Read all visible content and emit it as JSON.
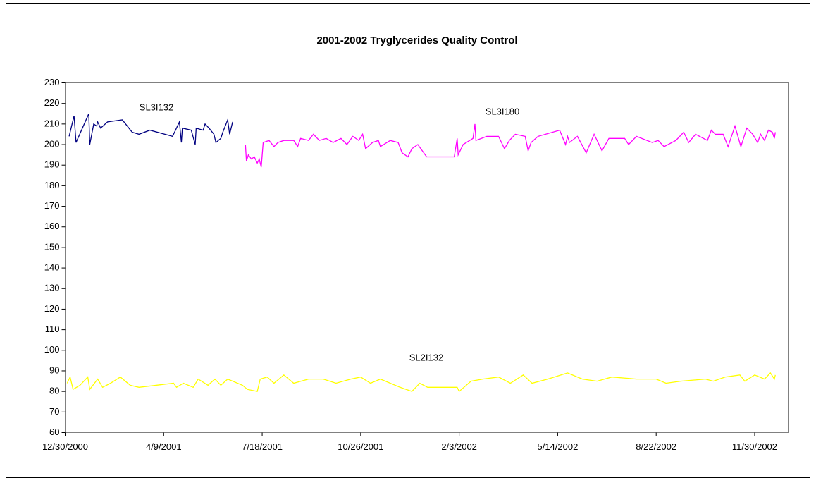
{
  "chart_data": {
    "type": "line",
    "title": "2001-2002 Tryglycerides Quality Control",
    "xlim": [
      "2000-12-30",
      "2003-01-03"
    ],
    "xticks": [
      {
        "value": "2000-12-30",
        "label": "12/30/2000"
      },
      {
        "value": "2001-04-09",
        "label": "4/9/2001"
      },
      {
        "value": "2001-07-18",
        "label": "7/18/2001"
      },
      {
        "value": "2001-10-26",
        "label": "10/26/2001"
      },
      {
        "value": "2002-02-03",
        "label": "2/3/2002"
      },
      {
        "value": "2002-05-14",
        "label": "5/14/2002"
      },
      {
        "value": "2002-08-22",
        "label": "8/22/2002"
      },
      {
        "value": "2002-11-30",
        "label": "11/30/2002"
      }
    ],
    "ylim": [
      60,
      230
    ],
    "yticks": [
      60,
      70,
      80,
      90,
      100,
      110,
      120,
      130,
      140,
      150,
      160,
      170,
      180,
      190,
      200,
      210,
      220,
      230
    ],
    "grid": false,
    "series": [
      {
        "name": "SL3I132",
        "color": "#000080",
        "x": [
          "2001-01-03",
          "2001-01-08",
          "2001-01-10",
          "2001-01-23",
          "2001-01-24",
          "2001-01-28",
          "2001-01-31",
          "2001-02-01",
          "2001-02-04",
          "2001-02-11",
          "2001-02-26",
          "2001-03-08",
          "2001-03-15",
          "2001-03-26",
          "2001-04-18",
          "2001-04-25",
          "2001-04-27",
          "2001-04-28",
          "2001-05-07",
          "2001-05-11",
          "2001-05-12",
          "2001-05-19",
          "2001-05-21",
          "2001-05-25",
          "2001-05-30",
          "2001-06-01",
          "2001-06-06",
          "2001-06-08",
          "2001-06-13",
          "2001-06-15",
          "2001-06-18"
        ],
        "values": [
          204,
          214,
          201,
          215,
          200,
          210,
          209,
          211,
          208,
          211,
          212,
          206,
          205,
          207,
          204,
          211,
          201,
          208,
          207,
          200,
          208,
          207,
          210,
          208,
          205,
          201,
          203,
          206,
          212,
          205,
          211
        ]
      },
      {
        "name": "SL3I180",
        "color": "#ff00ff",
        "x": [
          "2001-07-01",
          "2001-07-02",
          "2001-07-04",
          "2001-07-07",
          "2001-07-10",
          "2001-07-13",
          "2001-07-15",
          "2001-07-17",
          "2001-07-19",
          "2001-07-25",
          "2001-07-30",
          "2001-08-03",
          "2001-08-09",
          "2001-08-19",
          "2001-08-23",
          "2001-08-26",
          "2001-09-03",
          "2001-09-08",
          "2001-09-14",
          "2001-09-21",
          "2001-09-28",
          "2001-10-06",
          "2001-10-12",
          "2001-10-18",
          "2001-10-24",
          "2001-10-28",
          "2001-10-31",
          "2001-11-07",
          "2001-11-13",
          "2001-11-15",
          "2001-11-25",
          "2001-12-03",
          "2001-12-07",
          "2001-12-13",
          "2001-12-17",
          "2001-12-23",
          "2002-01-01",
          "2002-01-29",
          "2002-02-01",
          "2002-02-02",
          "2002-02-07",
          "2002-02-17",
          "2002-02-19",
          "2002-02-20",
          "2002-03-03",
          "2002-03-15",
          "2002-03-21",
          "2002-03-26",
          "2002-04-01",
          "2002-04-11",
          "2002-04-14",
          "2002-04-17",
          "2002-04-24",
          "2002-05-16",
          "2002-05-22",
          "2002-05-24",
          "2002-05-26",
          "2002-06-03",
          "2002-06-12",
          "2002-06-20",
          "2002-06-28",
          "2002-07-05",
          "2002-07-21",
          "2002-07-25",
          "2002-08-02",
          "2002-08-18",
          "2002-08-24",
          "2002-08-30",
          "2002-09-11",
          "2002-09-19",
          "2002-09-24",
          "2002-10-01",
          "2002-10-13",
          "2002-10-17",
          "2002-10-21",
          "2002-10-29",
          "2002-11-03",
          "2002-11-10",
          "2002-11-16",
          "2002-11-22",
          "2002-11-28",
          "2002-12-03",
          "2002-12-06",
          "2002-12-10",
          "2002-12-14",
          "2002-12-18",
          "2002-12-20",
          "2002-12-21"
        ],
        "values": [
          200,
          192,
          195,
          193,
          194,
          191,
          193,
          189,
          201,
          202,
          199,
          201,
          202,
          202,
          199,
          203,
          202,
          205,
          202,
          203,
          201,
          203,
          200,
          204,
          202,
          205,
          198,
          201,
          202,
          199,
          202,
          201,
          196,
          194,
          198,
          200,
          194,
          194,
          203,
          195,
          200,
          203,
          210,
          202,
          204,
          204,
          198,
          202,
          205,
          204,
          197,
          201,
          204,
          207,
          200,
          204,
          201,
          204,
          196,
          205,
          197,
          203,
          203,
          200,
          204,
          201,
          202,
          199,
          202,
          206,
          201,
          205,
          202,
          207,
          205,
          205,
          199,
          209,
          199,
          208,
          205,
          201,
          205,
          202,
          207,
          206,
          203,
          206
        ]
      },
      {
        "name": "SL2I132",
        "color": "#ffff00",
        "x": [
          "2001-01-01",
          "2001-01-04",
          "2001-01-07",
          "2001-01-14",
          "2001-01-22",
          "2001-01-24",
          "2001-02-01",
          "2001-02-06",
          "2001-02-14",
          "2001-02-24",
          "2001-03-06",
          "2001-03-15",
          "2001-04-19",
          "2001-04-22",
          "2001-04-29",
          "2001-05-09",
          "2001-05-14",
          "2001-05-24",
          "2001-05-31",
          "2001-06-06",
          "2001-06-13",
          "2001-06-28",
          "2001-07-03",
          "2001-07-13",
          "2001-07-16",
          "2001-07-23",
          "2001-07-30",
          "2001-08-09",
          "2001-08-19",
          "2001-09-03",
          "2001-09-18",
          "2001-10-01",
          "2001-10-16",
          "2001-10-26",
          "2001-11-05",
          "2001-11-15",
          "2001-12-05",
          "2001-12-17",
          "2001-12-25",
          "2002-01-02",
          "2002-02-01",
          "2002-02-03",
          "2002-02-15",
          "2002-02-27",
          "2002-03-15",
          "2002-03-27",
          "2002-04-09",
          "2002-04-18",
          "2002-05-04",
          "2002-05-24",
          "2002-06-08",
          "2002-06-23",
          "2002-07-08",
          "2002-08-02",
          "2002-08-22",
          "2002-09-01",
          "2002-09-16",
          "2002-10-11",
          "2002-10-19",
          "2002-10-31",
          "2002-11-15",
          "2002-11-20",
          "2002-11-30",
          "2002-12-10",
          "2002-12-16",
          "2002-12-20",
          "2002-12-21"
        ],
        "values": [
          84,
          87,
          81,
          83,
          87,
          81,
          86,
          82,
          84,
          87,
          83,
          82,
          84,
          82,
          84,
          82,
          86,
          83,
          86,
          83,
          86,
          83,
          81,
          80,
          86,
          87,
          84,
          88,
          84,
          86,
          86,
          84,
          86,
          87,
          84,
          86,
          82,
          80,
          84,
          82,
          82,
          80,
          85,
          86,
          87,
          84,
          88,
          84,
          86,
          89,
          86,
          85,
          87,
          86,
          86,
          84,
          85,
          86,
          85,
          87,
          88,
          85,
          88,
          86,
          89,
          86,
          88
        ]
      }
    ]
  }
}
